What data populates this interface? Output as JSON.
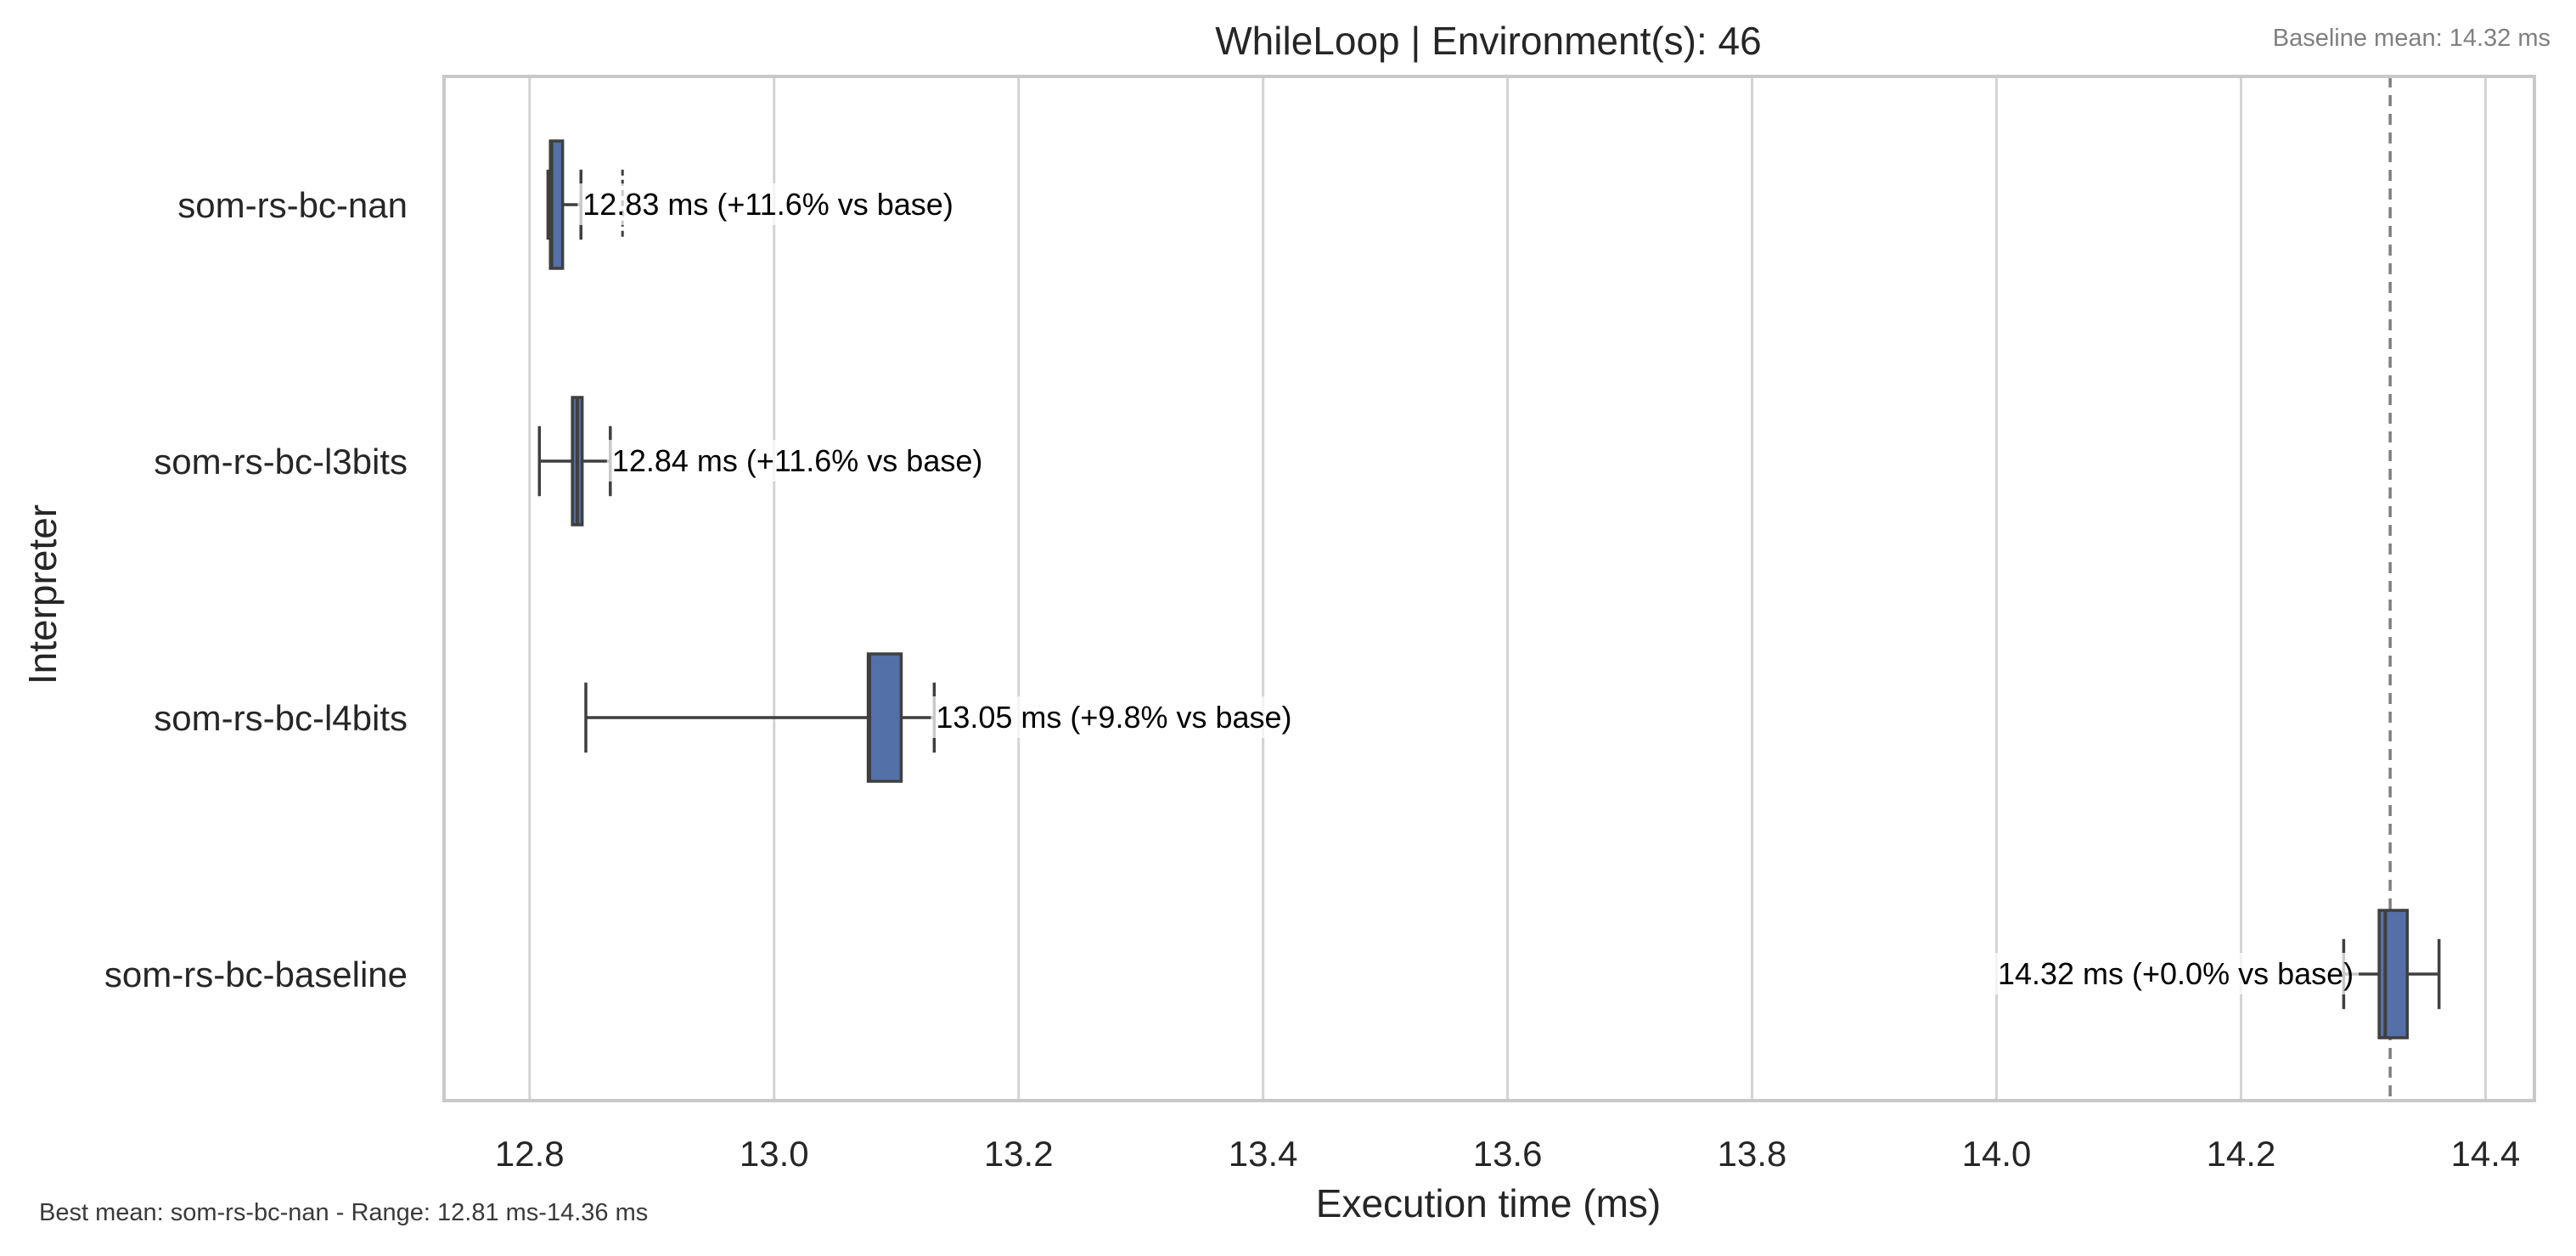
{
  "chart_data": {
    "type": "box",
    "title": "WhileLoop | Environment(s): 46",
    "subtitle_right": "Baseline mean: 14.32 ms",
    "footer_left": "Best mean: som-rs-bc-nan - Range: 12.81 ms-14.36 ms",
    "xlabel": "Execution time (ms)",
    "ylabel": "Interpreter",
    "xlim": [
      12.73,
      14.44
    ],
    "xticks": [
      12.8,
      13.0,
      13.2,
      13.4,
      13.6,
      13.8,
      14.0,
      14.2,
      14.4
    ],
    "xtick_labels": [
      "12.8",
      "13.0",
      "13.2",
      "13.4",
      "13.6",
      "13.8",
      "14.0",
      "14.2",
      "14.4"
    ],
    "grid": "vertical",
    "baseline_mean": 14.322,
    "colors": {
      "box_fill": "#5470a8",
      "box_edge": "#3f3f3f",
      "grid": "#d3d3d3",
      "frame": "#c9c9c9",
      "baseline_line": "#7f7f7f",
      "text": "#262626",
      "annotation_text": "#000000",
      "note_text": "#808080"
    },
    "series": [
      {
        "name": "som-rs-bc-nan",
        "min": 12.815,
        "q1": 12.817,
        "median": 12.818,
        "q3": 12.827,
        "max": 12.842,
        "flier": 12.876,
        "label": "12.83 ms  (+11.6% vs base)"
      },
      {
        "name": "som-rs-bc-l3bits",
        "min": 12.808,
        "q1": 12.835,
        "median": 12.839,
        "q3": 12.843,
        "max": 12.866,
        "flier": null,
        "label": "12.84 ms  (+11.6% vs base)"
      },
      {
        "name": "som-rs-bc-l4bits",
        "min": 12.846,
        "q1": 13.077,
        "median": 13.078,
        "q3": 13.104,
        "max": 13.131,
        "flier": null,
        "label": "13.05 ms  (+9.8% vs base)"
      },
      {
        "name": "som-rs-bc-baseline",
        "min": 14.284,
        "q1": 14.313,
        "median": 14.318,
        "q3": 14.336,
        "max": 14.362,
        "flier": null,
        "label": "14.32 ms  (+0.0% vs base)"
      }
    ]
  }
}
